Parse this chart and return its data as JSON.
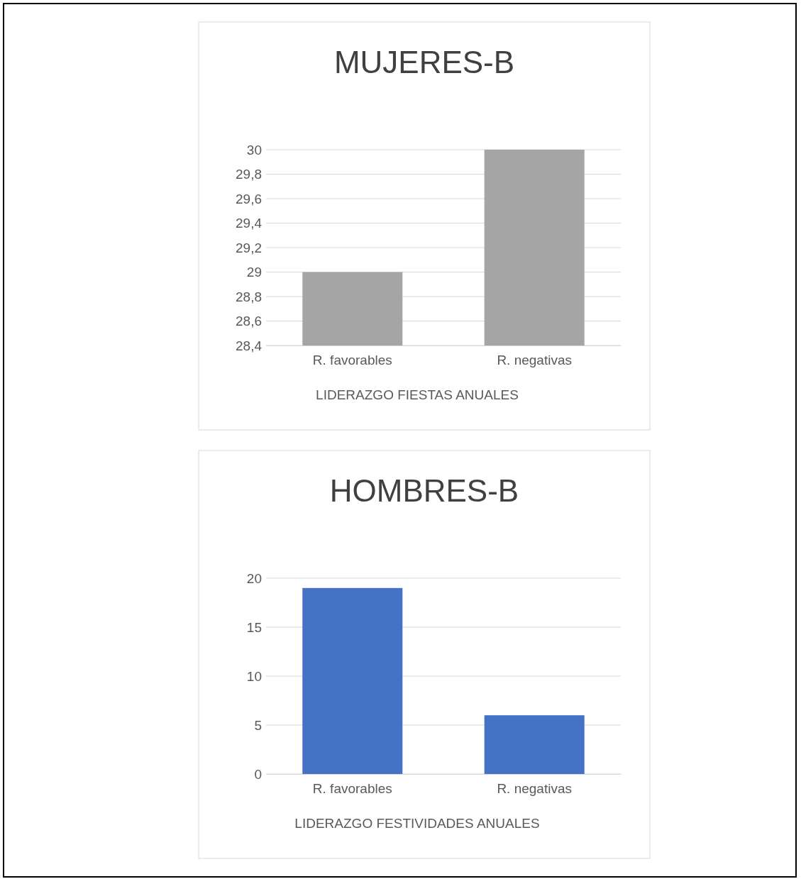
{
  "chart_data": [
    {
      "type": "bar",
      "title": "MUJERES-B",
      "xlabel": "LIDERAZGO FIESTAS ANUALES",
      "categories": [
        "R. favorables",
        "R. negativas"
      ],
      "values": [
        29,
        30
      ],
      "color": "#a5a5a5",
      "ylim": [
        28.4,
        30
      ],
      "yticks": [
        {
          "value": 28.4,
          "label": "28,4"
        },
        {
          "value": 28.6,
          "label": "28,6"
        },
        {
          "value": 28.8,
          "label": "28,8"
        },
        {
          "value": 29,
          "label": "29"
        },
        {
          "value": 29.2,
          "label": "29,2"
        },
        {
          "value": 29.4,
          "label": "29,4"
        },
        {
          "value": 29.6,
          "label": "29,6"
        },
        {
          "value": 29.8,
          "label": "29,8"
        },
        {
          "value": 30,
          "label": "30"
        }
      ],
      "grid": "y"
    },
    {
      "type": "bar",
      "title": "HOMBRES-B",
      "xlabel": "LIDERAZGO FESTIVIDADES ANUALES",
      "categories": [
        "R. favorables",
        "R. negativas"
      ],
      "values": [
        19,
        6
      ],
      "color": "#4472c4",
      "ylim": [
        0,
        20
      ],
      "yticks": [
        0,
        5,
        10,
        15,
        20
      ],
      "grid": "y"
    }
  ]
}
